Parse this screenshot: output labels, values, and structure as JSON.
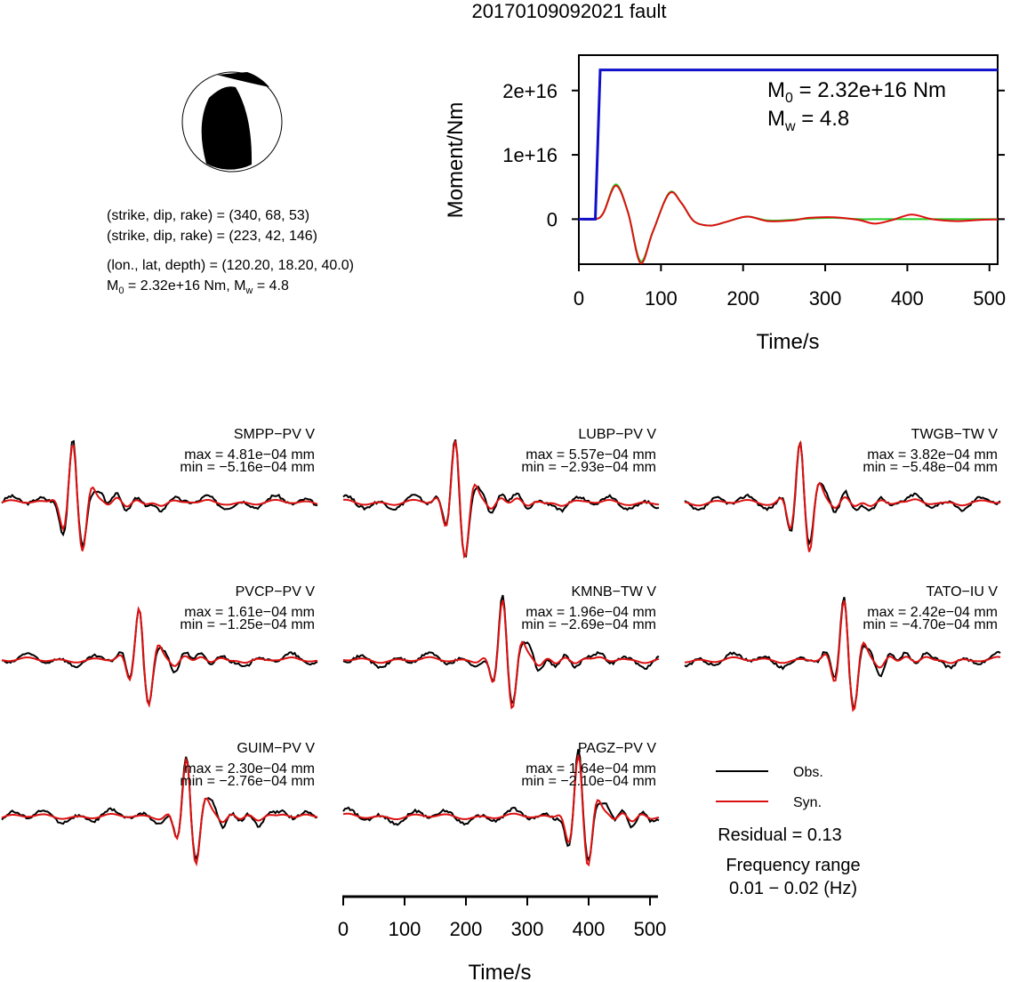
{
  "title": "20170109092021 fault",
  "info": {
    "line1": "(strike, dip, rake) = (340, 68, 53)",
    "line2": "(strike, dip, rake) = (223, 42, 146)",
    "line3": "(lon., lat, depth) = (120.20, 18.20, 40.0)",
    "line4_prefix": "M",
    "line4_sub0": "0",
    "line4_mid": " = 2.32e+16 Nm, M",
    "line4_subw": "w",
    "line4_suffix": " = 4.8"
  },
  "moment_plot": {
    "ylabel": "Moment/Nm",
    "xlabel": "Time/s",
    "m0_prefix": "M",
    "m0_sub": "0",
    "m0_text": " = 2.32e+16 Nm",
    "mw_prefix": "M",
    "mw_sub": "w",
    "mw_text": " = 4.8",
    "yticks": [
      "0",
      "1e+16",
      "2e+16"
    ],
    "xticks": [
      "0",
      "100",
      "200",
      "300",
      "400",
      "500"
    ]
  },
  "waveforms_xaxis": {
    "xlabel": "Time/s",
    "xticks": [
      "0",
      "100",
      "200",
      "300",
      "400",
      "500"
    ]
  },
  "legend": {
    "obs_label": "Obs.",
    "syn_label": "Syn.",
    "residual": "Residual = 0.13",
    "freq_label": "Frequency range",
    "freq_value": "0.01 − 0.02 (Hz)"
  },
  "colors": {
    "obs": "#000000",
    "syn": "#dd1111",
    "moment_rate_green": "#22cc22",
    "cumulative_moment_blue": "#1111cc"
  },
  "stations": [
    {
      "name": "SMPP−PV V",
      "max": "max = 4.81e−04 mm",
      "min": "min = −5.16e−04 mm"
    },
    {
      "name": "LUBP−PV V",
      "max": "max = 5.57e−04 mm",
      "min": "min = −2.93e−04 mm"
    },
    {
      "name": "TWGB−TW V",
      "max": "max = 3.82e−04 mm",
      "min": "min = −5.48e−04 mm"
    },
    {
      "name": "PVCP−PV V",
      "max": "max = 1.61e−04 mm",
      "min": "min = −1.25e−04 mm"
    },
    {
      "name": "KMNB−TW V",
      "max": "max = 1.96e−04 mm",
      "min": "min = −2.69e−04 mm"
    },
    {
      "name": "TATO−IU V",
      "max": "max = 2.42e−04 mm",
      "min": "min = −4.70e−04 mm"
    },
    {
      "name": "GUIM−PV V",
      "max": "max = 2.30e−04 mm",
      "min": "min = −2.76e−04 mm"
    },
    {
      "name": "PAGZ−PV V",
      "max": "max = 1.64e−04 mm",
      "min": "min = −2.10e−04 mm"
    }
  ],
  "chart_data": [
    {
      "type": "line",
      "title": "",
      "xlabel": "Time/s",
      "ylabel": "Moment/Nm",
      "xlim": [
        0,
        510
      ],
      "ylim": [
        -7000000000000000.0,
        2.55e+16
      ],
      "series": [
        {
          "color": "blue",
          "x": [
            0,
            20,
            26,
            510
          ],
          "values": [
            0,
            0,
            2.32e+16,
            2.32e+16
          ]
        },
        {
          "color": "red",
          "x": [
            0,
            20,
            30,
            45,
            60,
            75,
            90,
            110,
            125,
            140,
            160,
            180,
            205,
            230,
            260,
            280,
            310,
            340,
            360,
            380,
            405,
            430,
            460,
            490,
            510
          ],
          "values": [
            0,
            0,
            1000000000000000.0,
            5200000000000000.0,
            1000000000000000.0,
            -6800000000000000.0,
            -2000000000000000.0,
            4000000000000000.0,
            2500000000000000.0,
            -300000000000000.0,
            -1000000000000000.0,
            -400000000000000.0,
            400000000000000.0,
            -300000000000000.0,
            -200000000000000.0,
            200000000000000.0,
            300000000000000.0,
            -100000000000000.0,
            -700000000000000.0,
            -200000000000000.0,
            700000000000000.0,
            0,
            -300000000000000.0,
            -100000000000000.0,
            -50000000000000.0
          ]
        },
        {
          "color": "green",
          "x": [
            0,
            20,
            30,
            45,
            60,
            75,
            90,
            110,
            125,
            140,
            160,
            180,
            205,
            230,
            260,
            280,
            310,
            340,
            360,
            380,
            405,
            430,
            460,
            490,
            510
          ],
          "values": [
            0,
            0,
            1000000000000000.0,
            5400000000000000.0,
            1000000000000000.0,
            -6500000000000000.0,
            -2000000000000000.0,
            4100000000000000.0,
            2500000000000000.0,
            -300000000000000.0,
            -1000000000000000.0,
            -400000000000000.0,
            400000000000000.0,
            -200000000000000.0,
            -100000000000000.0,
            100000000000000.0,
            200000000000000.0,
            0,
            0,
            0,
            0,
            0,
            0,
            0,
            0
          ]
        }
      ]
    }
  ]
}
